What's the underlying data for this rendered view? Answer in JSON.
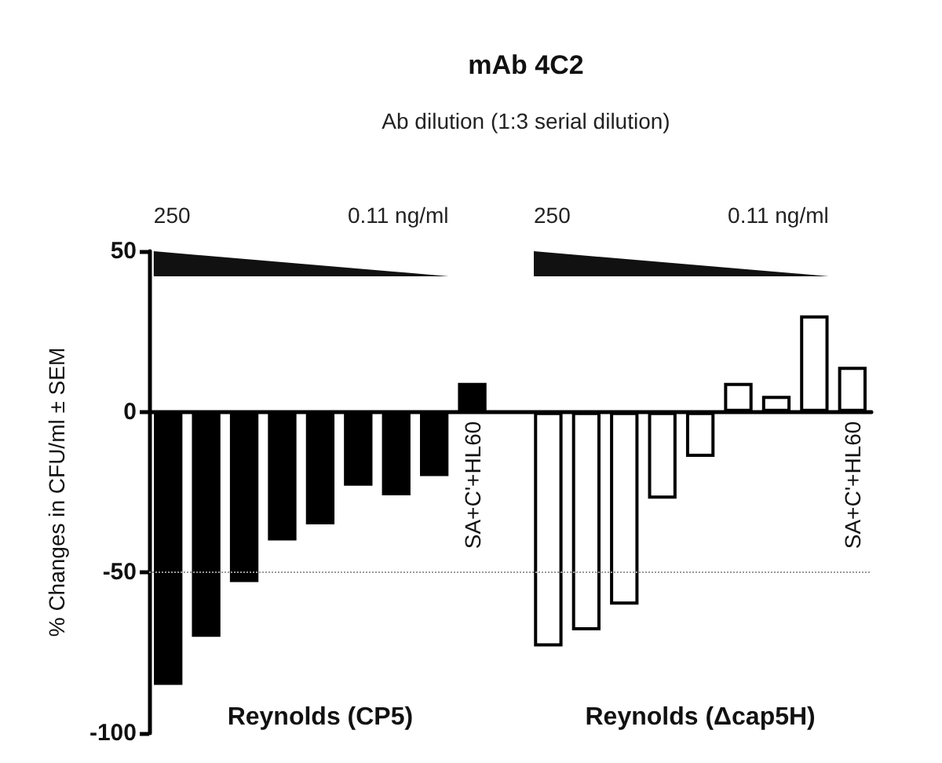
{
  "chart_data": {
    "type": "bar",
    "title": "mAb 4C2",
    "subtitle": "Ab dilution (1:3 serial dilution)",
    "ylabel": "% Changes in CFU/ml ± SEM",
    "categories": [
      null,
      null,
      null,
      null,
      null,
      null,
      null,
      null,
      "SA+C'+HL60",
      null,
      null,
      null,
      null,
      null,
      null,
      null,
      null,
      null,
      "SA+C'+HL60"
    ],
    "values": [
      -85,
      -70,
      -53,
      -40,
      -35,
      -23,
      -26,
      -20,
      9,
      null,
      -73,
      -68,
      -60,
      -27,
      -14,
      9,
      5,
      30,
      14
    ],
    "colors": [
      "#000000",
      "#000000",
      "#000000",
      "#000000",
      "#000000",
      "#000000",
      "#000000",
      "#000000",
      "#000000",
      "#ffffff",
      "#ffffff",
      "#ffffff",
      "#ffffff",
      "#ffffff",
      "#ffffff",
      "#ffffff",
      "#ffffff",
      "#ffffff",
      "#ffffff"
    ],
    "ylim": [
      -100,
      50
    ],
    "yticks": [
      -100,
      -50,
      0,
      50
    ],
    "grid": false,
    "ref_lines": [
      {
        "axis": "y",
        "value": -50,
        "color": "#999999",
        "line_style": "dotted"
      }
    ],
    "annotations": [
      "250",
      "0.11 ng/ml",
      "250",
      "0.11 ng/ml",
      "Reynolds (CP5)",
      "Reynolds (Δcap5H)"
    ]
  }
}
